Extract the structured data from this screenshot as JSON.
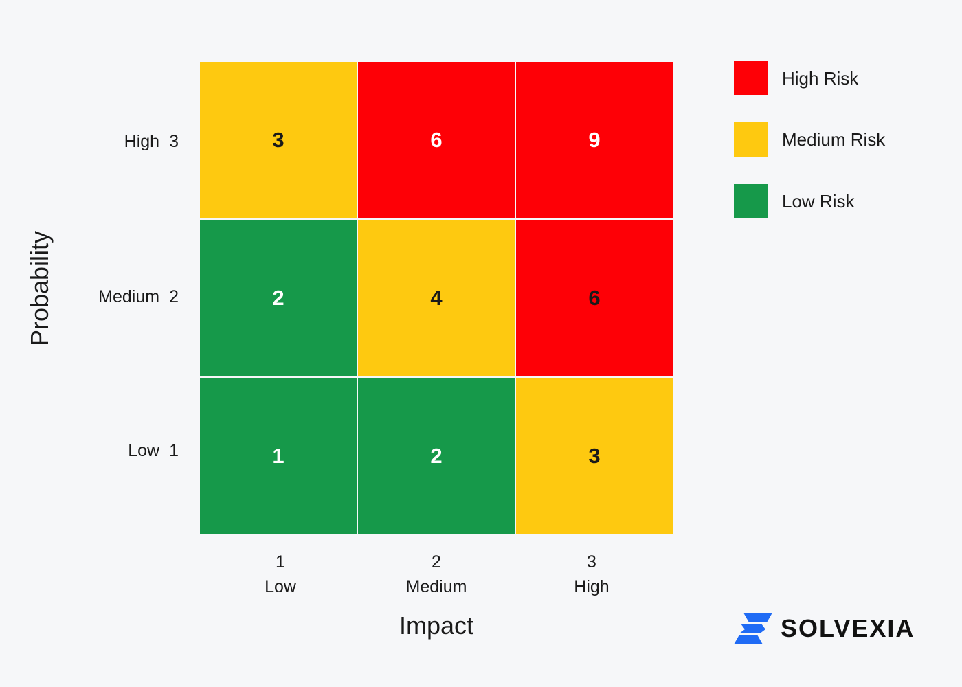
{
  "chart_data": {
    "type": "heatmap",
    "ylabel": "Probability",
    "xlabel": "Impact",
    "y_categories": [
      {
        "level": "High",
        "num": "3"
      },
      {
        "level": "Medium",
        "num": "2"
      },
      {
        "level": "Low",
        "num": "1"
      }
    ],
    "x_categories": [
      {
        "num": "1",
        "level": "Low"
      },
      {
        "num": "2",
        "level": "Medium"
      },
      {
        "num": "3",
        "level": "High"
      }
    ],
    "values": [
      [
        3,
        6,
        9
      ],
      [
        2,
        4,
        6
      ],
      [
        1,
        2,
        3
      ]
    ],
    "risk": [
      [
        "medium",
        "high",
        "high"
      ],
      [
        "low",
        "medium",
        "high"
      ],
      [
        "low",
        "low",
        "medium"
      ]
    ],
    "text_color": [
      [
        "dark",
        "light",
        "light"
      ],
      [
        "light",
        "dark",
        "dark"
      ],
      [
        "light",
        "light",
        "dark"
      ]
    ],
    "legend": [
      {
        "label": "High Risk",
        "key": "high"
      },
      {
        "label": "Medium Risk",
        "key": "medium"
      },
      {
        "label": "Low Risk",
        "key": "low"
      }
    ]
  },
  "colors": {
    "high": "#fe0006",
    "medium": "#fec910",
    "low": "#16994a",
    "dark_text": "#1a1a1a",
    "light_text": "#ffffff",
    "logo_blue": "#1f6bf5"
  },
  "brand": {
    "logo_icon": "solvexia-logo-icon",
    "name": "SOLVEXIA"
  }
}
